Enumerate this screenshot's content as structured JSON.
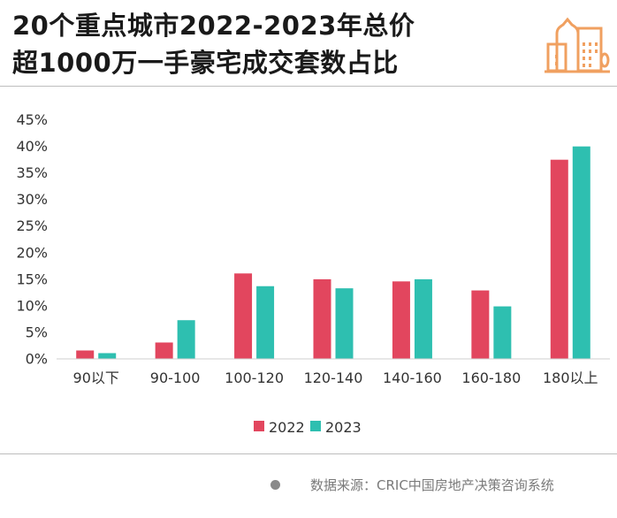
{
  "title_line1": "20个重点城市2022-2023年总价",
  "title_line2": "超1000万一手豪宅成交套数占比",
  "logo_icon": "city-buildings-icon",
  "source": "数据来源：CRIC中国房地产决策咨询系统",
  "colors": {
    "s2022": "#e2465e",
    "s2023": "#2ebfb0",
    "logo": "#f0a060"
  },
  "chart_data": {
    "type": "bar",
    "categories": [
      "90以下",
      "90-100",
      "100-120",
      "120-140",
      "140-160",
      "160-180",
      "180以上"
    ],
    "series": [
      {
        "name": "2022",
        "values": [
          1.5,
          3.0,
          16.0,
          14.9,
          14.5,
          12.8,
          37.4
        ]
      },
      {
        "name": "2023",
        "values": [
          1.0,
          7.2,
          13.6,
          13.2,
          14.9,
          9.8,
          39.9
        ]
      }
    ],
    "yticks": [
      "0%",
      "5%",
      "10%",
      "15%",
      "20%",
      "25%",
      "30%",
      "35%",
      "40%",
      "45%"
    ],
    "ylim": [
      0,
      45
    ],
    "unit": "%",
    "grid": false,
    "legend": "bottom-center"
  }
}
